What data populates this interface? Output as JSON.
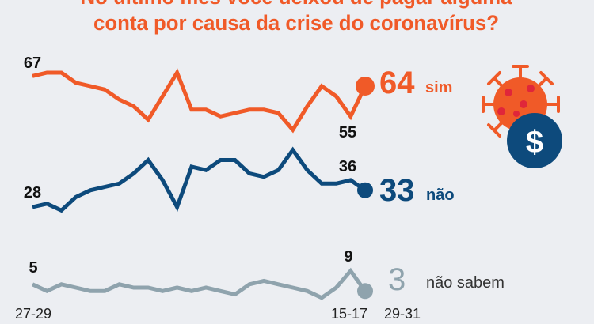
{
  "chart_data": {
    "type": "line",
    "title_lines": [
      "No último mês você deixou de pagar alguma",
      "conta por causa da crise do coronavírus?"
    ],
    "x_tick_labels": [
      "27-29",
      "15-17",
      "29-31"
    ],
    "n_points": 24,
    "ylim": [
      0,
      70
    ],
    "grid": false,
    "series": [
      {
        "name": "sim",
        "color": "#f05a28",
        "values": [
          67,
          68,
          68,
          65,
          64,
          63,
          60,
          58,
          54,
          61,
          68,
          57,
          57,
          55,
          56,
          57,
          57,
          56,
          51,
          58,
          64,
          61,
          55,
          64
        ],
        "start_label": "67",
        "annotated_label": "55",
        "final_label": "64"
      },
      {
        "name": "não",
        "color": "#0d4a7c",
        "values": [
          28,
          29,
          27,
          31,
          33,
          34,
          35,
          38,
          42,
          36,
          28,
          40,
          39,
          42,
          42,
          38,
          37,
          39,
          45,
          39,
          35,
          35,
          36,
          33
        ],
        "start_label": "28",
        "annotated_label": "36",
        "final_label": "33"
      },
      {
        "name": "não sabem",
        "color": "#8fa3ad",
        "values": [
          5,
          3,
          5,
          4,
          3,
          3,
          5,
          4,
          4,
          3,
          4,
          3,
          4,
          3,
          2,
          5,
          6,
          5,
          4,
          3,
          1,
          4,
          9,
          3
        ],
        "start_label": "5",
        "annotated_label": "9",
        "final_label": "3"
      }
    ]
  },
  "colors": {
    "orange": "#f05a28",
    "blue": "#0d4a7c",
    "grey": "#8fa3ad",
    "background": "#eceef2"
  },
  "icons": [
    "virus-icon",
    "dollar-icon"
  ],
  "dollar_symbol": "$"
}
